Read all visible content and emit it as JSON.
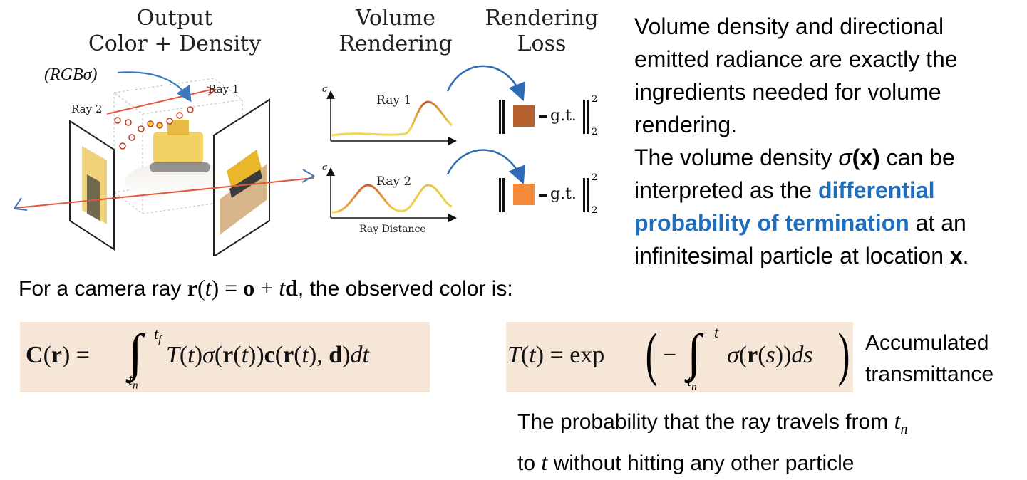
{
  "headers": {
    "output_line1": "Output",
    "output_line2": "Color + Density",
    "volume_line1": "Volume",
    "volume_line2": "Rendering",
    "loss_line1": "Rendering",
    "loss_line2": "Loss"
  },
  "scene": {
    "rgb_sigma": "(RGBσ)",
    "ray1": "Ray 1",
    "ray2": "Ray 2"
  },
  "plots": {
    "sigma": "σ",
    "ray1_label": "Ray 1",
    "ray2_label": "Ray 2",
    "xlabel": "Ray Distance"
  },
  "loss": {
    "gt": "g.t.",
    "sup": "2",
    "sub": "2",
    "ray1_color": "#b5602e",
    "ray2_color": "#f58a3a"
  },
  "paragraph": {
    "l1": "Volume density and directional",
    "l2": "emitted radiance are exactly the",
    "l3": "ingredients needed for volume",
    "l4": "rendering.",
    "l5a": "The volume density ",
    "l5_sigma": "σ",
    "l5_x": "(x)",
    "l5b": " can be",
    "l6a": "interpreted as the ",
    "l6_hl": "differential",
    "l7_hl": "probability of termination",
    "l7b": " at an",
    "l8a": "infinitesimal particle at location ",
    "l8_x": "x",
    "l8_dot": "."
  },
  "camera": {
    "prefix": "For a camera ray ",
    "suffix": ", the observed color is:"
  },
  "equation1": {
    "lhs": "C(r) = ",
    "upper": "t",
    "upper_sub": "f",
    "lower": "t",
    "lower_sub": "n",
    "integrand": "T(t)σ(r(t))c(r(t), d)dt"
  },
  "equation2": {
    "lhs": "T(t) = exp",
    "upper": "t",
    "lower": "t",
    "lower_sub": "n",
    "integrand": "σ(r(s))ds"
  },
  "transmittance": {
    "line1": "Accumulated",
    "line2": "transmittance"
  },
  "probability": {
    "line1": "The probability that the ray travels from ",
    "line1_var": "t",
    "line1_sub": "n",
    "line2_pre": "to ",
    "line2_var": "t",
    "line2_post": " without hitting any other particle"
  }
}
